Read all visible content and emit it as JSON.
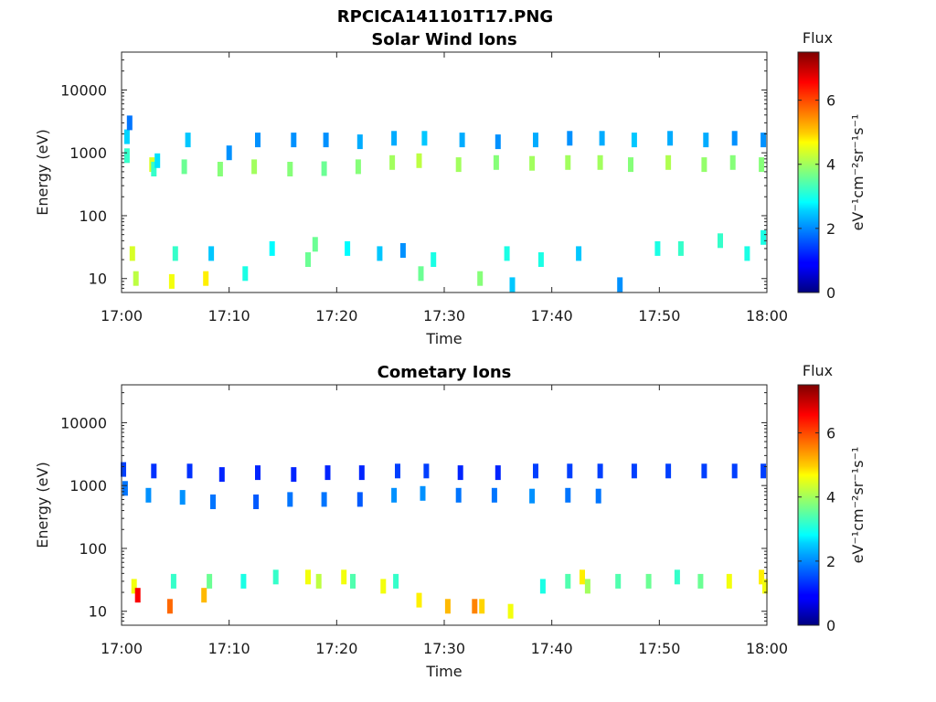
{
  "figure_title": "RPCICA141101T17.PNG",
  "chart_data": [
    {
      "type": "heatmap",
      "title": "Solar Wind Ions",
      "xlabel": "Time",
      "ylabel": "Energy (eV)",
      "y_scale": "log",
      "xlim": [
        "17:00",
        "18:00"
      ],
      "ylim": [
        6,
        40000
      ],
      "x_ticks": [
        "17:00",
        "17:10",
        "17:20",
        "17:30",
        "17:40",
        "17:50",
        "18:00"
      ],
      "y_ticks": [
        "10",
        "100",
        "1000",
        "10000"
      ],
      "colorbar": {
        "label": "Flux",
        "unit": "eV⁻¹cm⁻²sr⁻¹s⁻¹",
        "range": [
          0,
          7.5
        ],
        "ticks": [
          "0",
          "2",
          "4",
          "6"
        ]
      },
      "cells": [
        [
          "17:00:30",
          1800,
          2.5
        ],
        [
          "17:00:30",
          900,
          3.2
        ],
        [
          "17:00:45",
          3000,
          1.8
        ],
        [
          "17:02:50",
          650,
          4.4
        ],
        [
          "17:03:00",
          550,
          3.2
        ],
        [
          "17:03:20",
          750,
          2.6
        ],
        [
          "17:05:50",
          600,
          3.6
        ],
        [
          "17:06:10",
          1600,
          2.4
        ],
        [
          "17:09:10",
          550,
          3.8
        ],
        [
          "17:10:00",
          1000,
          2.0
        ],
        [
          "17:12:20",
          600,
          4.0
        ],
        [
          "17:12:40",
          1600,
          2.0
        ],
        [
          "17:15:40",
          550,
          3.8
        ],
        [
          "17:16:00",
          1600,
          2.0
        ],
        [
          "17:18:50",
          560,
          3.6
        ],
        [
          "17:19:00",
          1600,
          2.0
        ],
        [
          "17:22:00",
          600,
          3.8
        ],
        [
          "17:22:10",
          1500,
          2.2
        ],
        [
          "17:25:10",
          700,
          4.0
        ],
        [
          "17:25:20",
          1700,
          2.2
        ],
        [
          "17:27:40",
          750,
          4.2
        ],
        [
          "17:28:10",
          1700,
          2.4
        ],
        [
          "17:31:20",
          650,
          4.0
        ],
        [
          "17:31:40",
          1600,
          2.2
        ],
        [
          "17:34:50",
          700,
          3.8
        ],
        [
          "17:35:00",
          1500,
          2.0
        ],
        [
          "17:38:10",
          680,
          4.0
        ],
        [
          "17:38:30",
          1600,
          2.2
        ],
        [
          "17:41:30",
          700,
          4.0
        ],
        [
          "17:41:40",
          1700,
          2.0
        ],
        [
          "17:44:30",
          700,
          4.0
        ],
        [
          "17:44:40",
          1700,
          2.2
        ],
        [
          "17:47:20",
          650,
          3.8
        ],
        [
          "17:47:40",
          1600,
          2.4
        ],
        [
          "17:50:50",
          700,
          4.1
        ],
        [
          "17:51:00",
          1700,
          2.2
        ],
        [
          "17:54:10",
          650,
          3.9
        ],
        [
          "17:54:20",
          1600,
          2.2
        ],
        [
          "17:56:50",
          700,
          3.8
        ],
        [
          "17:57:00",
          1700,
          2.0
        ],
        [
          "17:59:30",
          650,
          3.8
        ],
        [
          "17:59:40",
          1600,
          2.0
        ],
        [
          "17:01:00",
          25,
          4.4
        ],
        [
          "17:01:20",
          10,
          4.2
        ],
        [
          "17:04:40",
          9,
          4.6
        ],
        [
          "17:05:00",
          25,
          3.2
        ],
        [
          "17:07:50",
          10,
          4.8
        ],
        [
          "17:08:20",
          25,
          2.4
        ],
        [
          "17:11:30",
          12,
          3.0
        ],
        [
          "17:14:00",
          30,
          2.8
        ],
        [
          "17:17:20",
          20,
          3.6
        ],
        [
          "17:18:00",
          35,
          3.6
        ],
        [
          "17:21:00",
          30,
          2.8
        ],
        [
          "17:24:00",
          25,
          2.4
        ],
        [
          "17:26:10",
          28,
          2.0
        ],
        [
          "17:27:50",
          12,
          3.6
        ],
        [
          "17:29:00",
          20,
          3.0
        ],
        [
          "17:33:20",
          10,
          3.8
        ],
        [
          "17:35:50",
          25,
          3.0
        ],
        [
          "17:36:20",
          8,
          2.4
        ],
        [
          "17:39:00",
          20,
          3.0
        ],
        [
          "17:42:30",
          25,
          2.4
        ],
        [
          "17:46:20",
          8,
          2.0
        ],
        [
          "17:49:50",
          30,
          3.0
        ],
        [
          "17:52:00",
          30,
          3.2
        ],
        [
          "17:55:40",
          40,
          3.2
        ],
        [
          "17:58:10",
          25,
          3.0
        ],
        [
          "17:59:40",
          45,
          3.0
        ]
      ]
    },
    {
      "type": "heatmap",
      "title": "Cometary Ions",
      "xlabel": "Time",
      "ylabel": "Energy (eV)",
      "y_scale": "log",
      "xlim": [
        "17:00",
        "18:00"
      ],
      "ylim": [
        6,
        40000
      ],
      "x_ticks": [
        "17:00",
        "17:10",
        "17:20",
        "17:30",
        "17:40",
        "17:50",
        "18:00"
      ],
      "y_ticks": [
        "10",
        "100",
        "1000",
        "10000"
      ],
      "colorbar": {
        "label": "Flux",
        "unit": "eV⁻¹cm⁻²sr⁻¹s⁻¹",
        "range": [
          0,
          7.5
        ],
        "ticks": [
          "0",
          "2",
          "4",
          "6"
        ]
      },
      "cells": [
        [
          "17:00:10",
          1800,
          1.4
        ],
        [
          "17:00:20",
          900,
          1.8
        ],
        [
          "17:02:30",
          700,
          2.0
        ],
        [
          "17:03:00",
          1700,
          1.3
        ],
        [
          "17:05:40",
          650,
          2.0
        ],
        [
          "17:06:20",
          1700,
          1.3
        ],
        [
          "17:08:30",
          550,
          1.8
        ],
        [
          "17:09:20",
          1500,
          1.2
        ],
        [
          "17:12:30",
          550,
          1.6
        ],
        [
          "17:12:40",
          1600,
          1.2
        ],
        [
          "17:15:40",
          600,
          1.8
        ],
        [
          "17:16:00",
          1500,
          1.2
        ],
        [
          "17:18:50",
          600,
          1.8
        ],
        [
          "17:19:10",
          1600,
          1.2
        ],
        [
          "17:22:10",
          600,
          1.6
        ],
        [
          "17:22:20",
          1600,
          1.2
        ],
        [
          "17:25:20",
          700,
          2.0
        ],
        [
          "17:25:40",
          1700,
          1.4
        ],
        [
          "17:28:00",
          750,
          2.0
        ],
        [
          "17:28:20",
          1700,
          1.4
        ],
        [
          "17:31:20",
          700,
          1.8
        ],
        [
          "17:31:30",
          1600,
          1.2
        ],
        [
          "17:34:40",
          700,
          1.8
        ],
        [
          "17:35:00",
          1600,
          1.2
        ],
        [
          "17:38:10",
          680,
          2.0
        ],
        [
          "17:38:30",
          1700,
          1.4
        ],
        [
          "17:41:30",
          700,
          1.8
        ],
        [
          "17:41:40",
          1700,
          1.4
        ],
        [
          "17:44:20",
          680,
          1.8
        ],
        [
          "17:44:30",
          1700,
          1.4
        ],
        [
          "17:47:40",
          1700,
          1.4
        ],
        [
          "17:50:50",
          1700,
          1.4
        ],
        [
          "17:54:10",
          1700,
          1.4
        ],
        [
          "17:57:00",
          1700,
          1.4
        ],
        [
          "17:59:40",
          1700,
          1.4
        ],
        [
          "17:01:10",
          25,
          4.6
        ],
        [
          "17:01:30",
          18,
          6.6
        ],
        [
          "17:04:30",
          12,
          5.8
        ],
        [
          "17:04:50",
          30,
          3.2
        ],
        [
          "17:07:40",
          18,
          5.2
        ],
        [
          "17:08:10",
          30,
          3.6
        ],
        [
          "17:11:20",
          30,
          3.0
        ],
        [
          "17:14:20",
          35,
          3.2
        ],
        [
          "17:17:20",
          35,
          4.6
        ],
        [
          "17:18:20",
          30,
          4.2
        ],
        [
          "17:20:40",
          35,
          4.6
        ],
        [
          "17:21:30",
          30,
          3.4
        ],
        [
          "17:24:20",
          25,
          4.6
        ],
        [
          "17:25:30",
          30,
          3.2
        ],
        [
          "17:27:40",
          15,
          4.8
        ],
        [
          "17:30:20",
          12,
          5.2
        ],
        [
          "17:32:50",
          12,
          5.6
        ],
        [
          "17:33:30",
          12,
          5.0
        ],
        [
          "17:36:10",
          10,
          4.6
        ],
        [
          "17:39:10",
          25,
          3.0
        ],
        [
          "17:41:30",
          30,
          3.4
        ],
        [
          "17:42:50",
          35,
          4.8
        ],
        [
          "17:43:20",
          25,
          4.0
        ],
        [
          "17:46:10",
          30,
          3.4
        ],
        [
          "17:49:00",
          30,
          3.6
        ],
        [
          "17:51:40",
          35,
          3.2
        ],
        [
          "17:53:50",
          30,
          3.6
        ],
        [
          "17:56:30",
          30,
          4.6
        ],
        [
          "17:59:30",
          35,
          4.8
        ],
        [
          "17:59:50",
          25,
          4.6
        ]
      ]
    }
  ]
}
